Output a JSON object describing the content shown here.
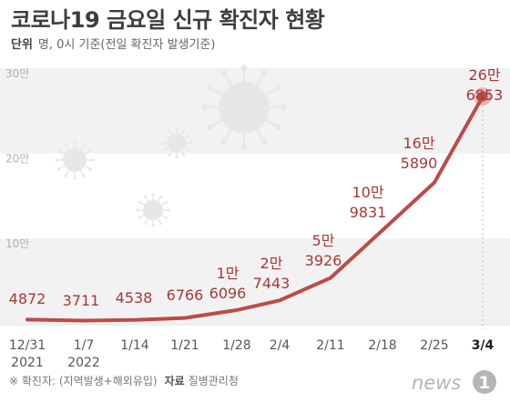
{
  "header": {
    "title": "코로나19 금요일 신규 확진자 현황",
    "unit_label": "단위",
    "unit_text": "명, 0시 기준(전일 확진자 발생기준)"
  },
  "footer": {
    "note": "※ 확진자: (지역발생+해외유입)",
    "source_label": "자료",
    "source_text": "질병관리청"
  },
  "logo": {
    "text": "news",
    "icon": "circle-1-logo-icon"
  },
  "colors": {
    "line": "#bd4b48",
    "label": "#a23b37",
    "tick": "#555555",
    "grid_band": "#f2f2f2",
    "virus": "#e7e7e7"
  },
  "chart_data": {
    "type": "line",
    "title": "코로나19 금요일 신규 확진자 현황",
    "ylim": [
      0,
      300000
    ],
    "yticks": [
      {
        "value": 100000,
        "label": "10만"
      },
      {
        "value": 200000,
        "label": "20만"
      },
      {
        "value": 300000,
        "label": "30만"
      }
    ],
    "categories": [
      [
        "12/31",
        "2021"
      ],
      [
        "1/7",
        "2022"
      ],
      [
        "1/14"
      ],
      [
        "1/21"
      ],
      [
        "1/28"
      ],
      [
        "2/4"
      ],
      [
        "2/11"
      ],
      [
        "2/18"
      ],
      [
        "2/25"
      ],
      [
        "3/4"
      ]
    ],
    "values": [
      4872,
      3711,
      4538,
      6766,
      16096,
      27443,
      53926,
      109831,
      165890,
      266853
    ],
    "data_labels": [
      [
        "4872"
      ],
      [
        "3711"
      ],
      [
        "4538"
      ],
      [
        "6766"
      ],
      [
        "1만",
        "6096"
      ],
      [
        "2만",
        "7443"
      ],
      [
        "5만",
        "3926"
      ],
      [
        "10만",
        "9831"
      ],
      [
        "16만",
        "5890"
      ],
      [
        "26만",
        "6853"
      ]
    ]
  }
}
